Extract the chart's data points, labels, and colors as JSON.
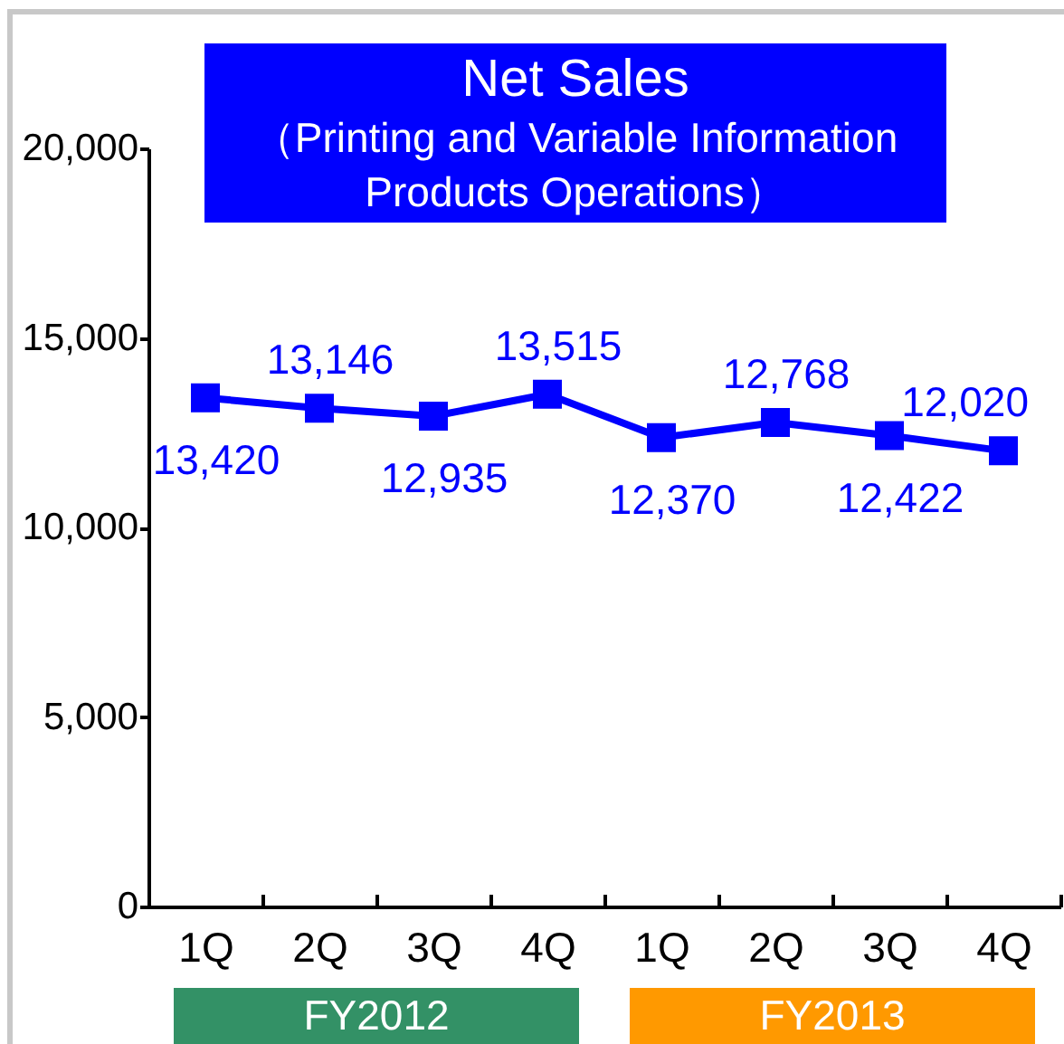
{
  "chart_data": {
    "type": "line",
    "title": "Net Sales",
    "subtitle": "（Printing and Variable Information Products Operations）",
    "categories": [
      "1Q",
      "2Q",
      "3Q",
      "4Q",
      "1Q",
      "2Q",
      "3Q",
      "4Q"
    ],
    "series": [
      {
        "color": "#0000ff",
        "values": [
          13420,
          13146,
          12935,
          13515,
          12370,
          12768,
          12422,
          12020
        ],
        "value_labels": [
          "13,420",
          "13,146",
          "12,935",
          "13,515",
          "12,370",
          "12,768",
          "12,422",
          "12,020"
        ]
      }
    ],
    "ylim": [
      0,
      20000
    ],
    "yticks": [
      0,
      {
        "value": 5000,
        "label": "5,000"
      },
      {
        "value": 10000,
        "label": "10,000"
      },
      {
        "value": 15000,
        "label": "15,000"
      },
      {
        "value": 20000,
        "label": "20,000"
      }
    ],
    "marker": "square",
    "line_style": "solid",
    "annotations": [
      "FY2012",
      "FY2013"
    ]
  }
}
